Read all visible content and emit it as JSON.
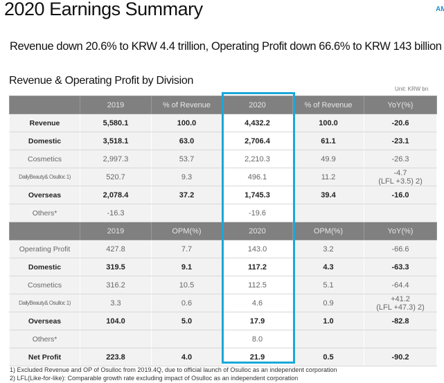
{
  "title": "2020 Earnings Summary",
  "logo_text": "AM",
  "headline": "Revenue down 20.6% to KRW 4.4 trillion, Operating Profit down 66.6% to KRW 143 billion",
  "section_title": "Revenue & Operating Profit by Division",
  "unit": "Unit: KRW bn",
  "highlight_color": "#1aa8d8",
  "revenue_header": [
    "",
    "2019",
    "% of Revenue",
    "2020",
    "% of Revenue",
    "YoY(%)"
  ],
  "revenue_rows": [
    {
      "cells": [
        "Revenue",
        "5,580.1",
        "100.0",
        "4,432.2",
        "100.0",
        "-20.6"
      ],
      "bold": true
    },
    {
      "cells": [
        "Domestic",
        "3,518.1",
        "63.0",
        "2,706.4",
        "61.1",
        "-23.1"
      ],
      "bold": true
    },
    {
      "cells": [
        "Cosmetics",
        "2,997.3",
        "53.7",
        "2,210.3",
        "49.9",
        "-26.3"
      ],
      "bold": false
    },
    {
      "cells": [
        "DailyBeauty& Osulloc 1)",
        "520.7",
        "9.3",
        "496.1",
        "11.2",
        "-4.7",
        "(LFL +3.5) 2)"
      ],
      "bold": false
    },
    {
      "cells": [
        "Overseas",
        "2,078.4",
        "37.2",
        "1,745.3",
        "39.4",
        "-16.0"
      ],
      "bold": true
    },
    {
      "cells": [
        "Others*",
        "-16.3",
        "",
        "-19.6",
        "",
        ""
      ],
      "bold": false
    }
  ],
  "op_header": [
    "",
    "2019",
    "OPM(%)",
    "2020",
    "OPM(%)",
    "YoY(%)"
  ],
  "op_rows": [
    {
      "cells": [
        "Operating Profit",
        "427.8",
        "7.7",
        "143.0",
        "3.2",
        "-66.6"
      ],
      "bold": false
    },
    {
      "cells": [
        "Domestic",
        "319.5",
        "9.1",
        "117.2",
        "4.3",
        "-63.3"
      ],
      "bold": true
    },
    {
      "cells": [
        "Cosmetics",
        "316.2",
        "10.5",
        "112.5",
        "5.1",
        "-64.4"
      ],
      "bold": false
    },
    {
      "cells": [
        "DailyBeauty& Osulloc 1)",
        "3.3",
        "0.6",
        "4.6",
        "0.9",
        "+41.2",
        "(LFL +47.3) 2)"
      ],
      "bold": false
    },
    {
      "cells": [
        "Overseas",
        "104.0",
        "5.0",
        "17.9",
        "1.0",
        "-82.8"
      ],
      "bold": true
    },
    {
      "cells": [
        "Others*",
        "",
        "",
        "8.0",
        "",
        ""
      ],
      "bold": false
    },
    {
      "cells": [
        "Net Profit",
        "223.8",
        "4.0",
        "21.9",
        "0.5",
        "-90.2"
      ],
      "bold": true
    }
  ],
  "footnotes": [
    "1) Excluded Revenue and OP of Osulloc from 2019.4Q, due to official launch of Osulloc as an independent corporation",
    "2) LFL(Like-for-like): Comparable growth rate excluding impact of Osulloc as an independent corporation"
  ]
}
